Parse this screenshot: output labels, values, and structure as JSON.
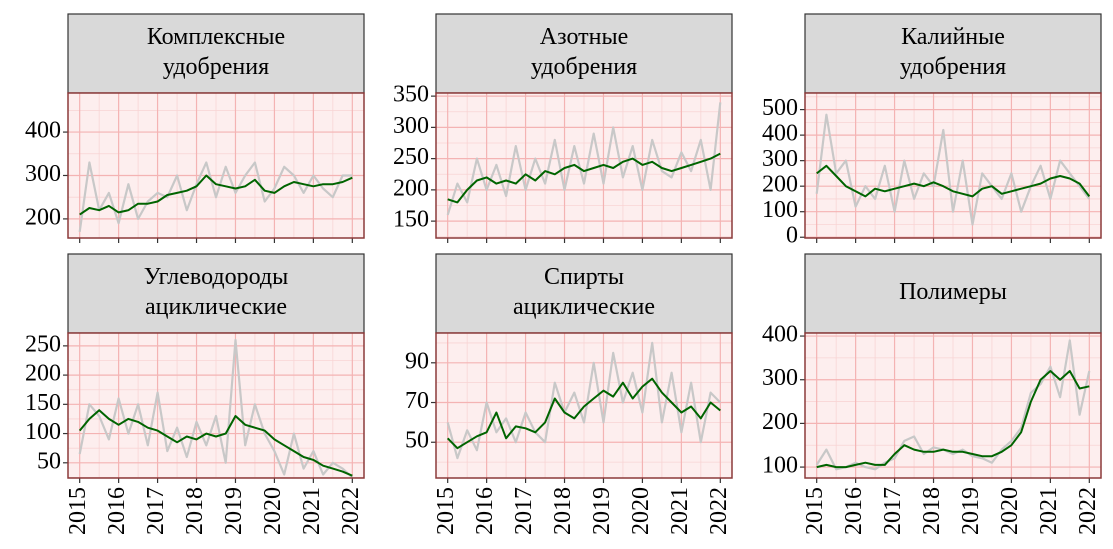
{
  "chart_data": [
    {
      "type": "line",
      "title": [
        "Комплексные",
        "удобрения"
      ],
      "x": [
        2015,
        2015.25,
        2015.5,
        2015.75,
        2016,
        2016.25,
        2016.5,
        2016.75,
        2017,
        2017.25,
        2017.5,
        2017.75,
        2018,
        2018.25,
        2018.5,
        2018.75,
        2019,
        2019.25,
        2019.5,
        2019.75,
        2020,
        2020.25,
        2020.5,
        2020.75,
        2021,
        2021.25,
        2021.5,
        2021.75,
        2022
      ],
      "series": [
        {
          "color": "#c8c8c8",
          "values": [
            170,
            330,
            220,
            260,
            190,
            280,
            200,
            240,
            260,
            250,
            300,
            220,
            280,
            330,
            250,
            320,
            260,
            300,
            330,
            240,
            270,
            320,
            300,
            260,
            300,
            270,
            250,
            300,
            300
          ]
        },
        {
          "color": "#006400",
          "values": [
            210,
            225,
            220,
            230,
            215,
            220,
            235,
            235,
            240,
            255,
            260,
            265,
            275,
            300,
            280,
            275,
            270,
            275,
            290,
            265,
            260,
            275,
            285,
            280,
            275,
            280,
            280,
            285,
            295
          ]
        }
      ],
      "xlim": [
        2014.7,
        2022.3
      ],
      "xticks": [
        2015,
        2016,
        2017,
        2018,
        2019,
        2020,
        2021,
        2022
      ],
      "ylim": [
        156,
        490
      ],
      "yticks": [
        200,
        300,
        400
      ]
    },
    {
      "type": "line",
      "title": [
        "Азотные",
        "удобрения"
      ],
      "x": [
        2015,
        2015.25,
        2015.5,
        2015.75,
        2016,
        2016.25,
        2016.5,
        2016.75,
        2017,
        2017.25,
        2017.5,
        2017.75,
        2018,
        2018.25,
        2018.5,
        2018.75,
        2019,
        2019.25,
        2019.5,
        2019.75,
        2020,
        2020.25,
        2020.5,
        2020.75,
        2021,
        2021.25,
        2021.5,
        2021.75,
        2022
      ],
      "series": [
        {
          "color": "#c8c8c8",
          "values": [
            160,
            210,
            180,
            250,
            200,
            240,
            190,
            270,
            200,
            250,
            210,
            280,
            200,
            270,
            210,
            290,
            210,
            300,
            220,
            270,
            200,
            280,
            230,
            220,
            260,
            230,
            280,
            200,
            340
          ]
        },
        {
          "color": "#006400",
          "values": [
            185,
            180,
            200,
            215,
            220,
            210,
            215,
            210,
            225,
            215,
            230,
            225,
            235,
            240,
            230,
            235,
            240,
            235,
            245,
            250,
            240,
            245,
            235,
            230,
            235,
            240,
            245,
            250,
            258
          ]
        }
      ],
      "xlim": [
        2014.7,
        2022.3
      ],
      "xticks": [
        2015,
        2016,
        2017,
        2018,
        2019,
        2020,
        2021,
        2022
      ],
      "ylim": [
        123,
        355
      ],
      "yticks": [
        150,
        200,
        250,
        300,
        350
      ]
    },
    {
      "type": "line",
      "title": [
        "Калийные",
        "удобрения"
      ],
      "x": [
        2015,
        2015.25,
        2015.5,
        2015.75,
        2016,
        2016.25,
        2016.5,
        2016.75,
        2017,
        2017.25,
        2017.5,
        2017.75,
        2018,
        2018.25,
        2018.5,
        2018.75,
        2019,
        2019.25,
        2019.5,
        2019.75,
        2020,
        2020.25,
        2020.5,
        2020.75,
        2021,
        2021.25,
        2021.5,
        2021.75,
        2022
      ],
      "series": [
        {
          "color": "#c8c8c8",
          "values": [
            170,
            480,
            250,
            300,
            120,
            200,
            150,
            280,
            100,
            300,
            150,
            250,
            200,
            420,
            100,
            300,
            50,
            250,
            200,
            150,
            250,
            100,
            200,
            280,
            150,
            300,
            250,
            200,
            150
          ]
        },
        {
          "color": "#006400",
          "values": [
            250,
            280,
            240,
            200,
            180,
            160,
            190,
            180,
            190,
            200,
            210,
            200,
            215,
            200,
            180,
            170,
            160,
            190,
            200,
            170,
            180,
            190,
            200,
            210,
            230,
            240,
            230,
            210,
            160
          ]
        }
      ],
      "xlim": [
        2014.7,
        2022.3
      ],
      "xticks": [
        2015,
        2016,
        2017,
        2018,
        2019,
        2020,
        2021,
        2022
      ],
      "ylim": [
        -3,
        565
      ],
      "yticks": [
        0,
        100,
        200,
        300,
        400,
        500
      ]
    },
    {
      "type": "line",
      "title": [
        "Углеводороды",
        "ациклические"
      ],
      "x": [
        2015,
        2015.25,
        2015.5,
        2015.75,
        2016,
        2016.25,
        2016.5,
        2016.75,
        2017,
        2017.25,
        2017.5,
        2017.75,
        2018,
        2018.25,
        2018.5,
        2018.75,
        2019,
        2019.25,
        2019.5,
        2019.75,
        2020,
        2020.25,
        2020.5,
        2020.75,
        2021,
        2021.25,
        2021.5,
        2021.75,
        2022
      ],
      "series": [
        {
          "color": "#c8c8c8",
          "values": [
            65,
            150,
            130,
            90,
            160,
            100,
            150,
            80,
            170,
            70,
            110,
            60,
            120,
            80,
            130,
            50,
            260,
            80,
            150,
            100,
            70,
            30,
            100,
            40,
            70,
            30,
            50,
            40,
            25
          ]
        },
        {
          "color": "#006400",
          "values": [
            105,
            125,
            140,
            125,
            115,
            125,
            120,
            110,
            105,
            95,
            85,
            95,
            90,
            100,
            95,
            100,
            130,
            115,
            110,
            105,
            90,
            80,
            70,
            60,
            55,
            45,
            40,
            35,
            28
          ]
        }
      ],
      "xlim": [
        2014.7,
        2022.3
      ],
      "xticks": [
        2015,
        2016,
        2017,
        2018,
        2019,
        2020,
        2021,
        2022
      ],
      "ylim": [
        24,
        272
      ],
      "yticks": [
        50,
        100,
        150,
        200,
        250
      ]
    },
    {
      "type": "line",
      "title": [
        "Спирты",
        "ациклические"
      ],
      "x": [
        2015,
        2015.25,
        2015.5,
        2015.75,
        2016,
        2016.25,
        2016.5,
        2016.75,
        2017,
        2017.25,
        2017.5,
        2017.75,
        2018,
        2018.25,
        2018.5,
        2018.75,
        2019,
        2019.25,
        2019.5,
        2019.75,
        2020,
        2020.25,
        2020.5,
        2020.75,
        2021,
        2021.25,
        2021.5,
        2021.75,
        2022
      ],
      "series": [
        {
          "color": "#c8c8c8",
          "values": [
            60,
            42,
            56,
            46,
            70,
            55,
            62,
            50,
            65,
            55,
            50,
            80,
            65,
            75,
            60,
            90,
            60,
            95,
            70,
            85,
            65,
            100,
            60,
            85,
            55,
            80,
            50,
            75,
            70
          ]
        },
        {
          "color": "#006400",
          "values": [
            52,
            47,
            50,
            53,
            55,
            65,
            52,
            58,
            57,
            55,
            60,
            72,
            65,
            62,
            68,
            72,
            76,
            73,
            80,
            72,
            78,
            82,
            75,
            70,
            65,
            68,
            62,
            70,
            66
          ]
        }
      ],
      "xlim": [
        2014.7,
        2022.3
      ],
      "xticks": [
        2015,
        2016,
        2017,
        2018,
        2019,
        2020,
        2021,
        2022
      ],
      "ylim": [
        32,
        105
      ],
      "yticks": [
        50,
        70,
        90
      ]
    },
    {
      "type": "line",
      "title": [
        "Полимеры"
      ],
      "x": [
        2015,
        2015.25,
        2015.5,
        2015.75,
        2016,
        2016.25,
        2016.5,
        2016.75,
        2017,
        2017.25,
        2017.5,
        2017.75,
        2018,
        2018.25,
        2018.5,
        2018.75,
        2019,
        2019.25,
        2019.5,
        2019.75,
        2020,
        2020.25,
        2020.5,
        2020.75,
        2021,
        2021.25,
        2021.5,
        2021.75,
        2022
      ],
      "series": [
        {
          "color": "#c8c8c8",
          "values": [
            105,
            140,
            95,
            100,
            110,
            100,
            95,
            110,
            120,
            160,
            170,
            130,
            145,
            140,
            130,
            140,
            125,
            120,
            110,
            140,
            160,
            190,
            270,
            290,
            330,
            260,
            390,
            220,
            320
          ]
        },
        {
          "color": "#006400",
          "values": [
            100,
            105,
            100,
            100,
            105,
            110,
            105,
            105,
            130,
            150,
            140,
            135,
            135,
            140,
            135,
            135,
            130,
            125,
            125,
            135,
            150,
            180,
            250,
            300,
            320,
            300,
            320,
            280,
            285
          ]
        }
      ],
      "xlim": [
        2014.7,
        2022.3
      ],
      "xticks": [
        2015,
        2016,
        2017,
        2018,
        2019,
        2020,
        2021,
        2022
      ],
      "ylim": [
        75,
        407
      ],
      "yticks": [
        100,
        200,
        300,
        400
      ]
    }
  ]
}
